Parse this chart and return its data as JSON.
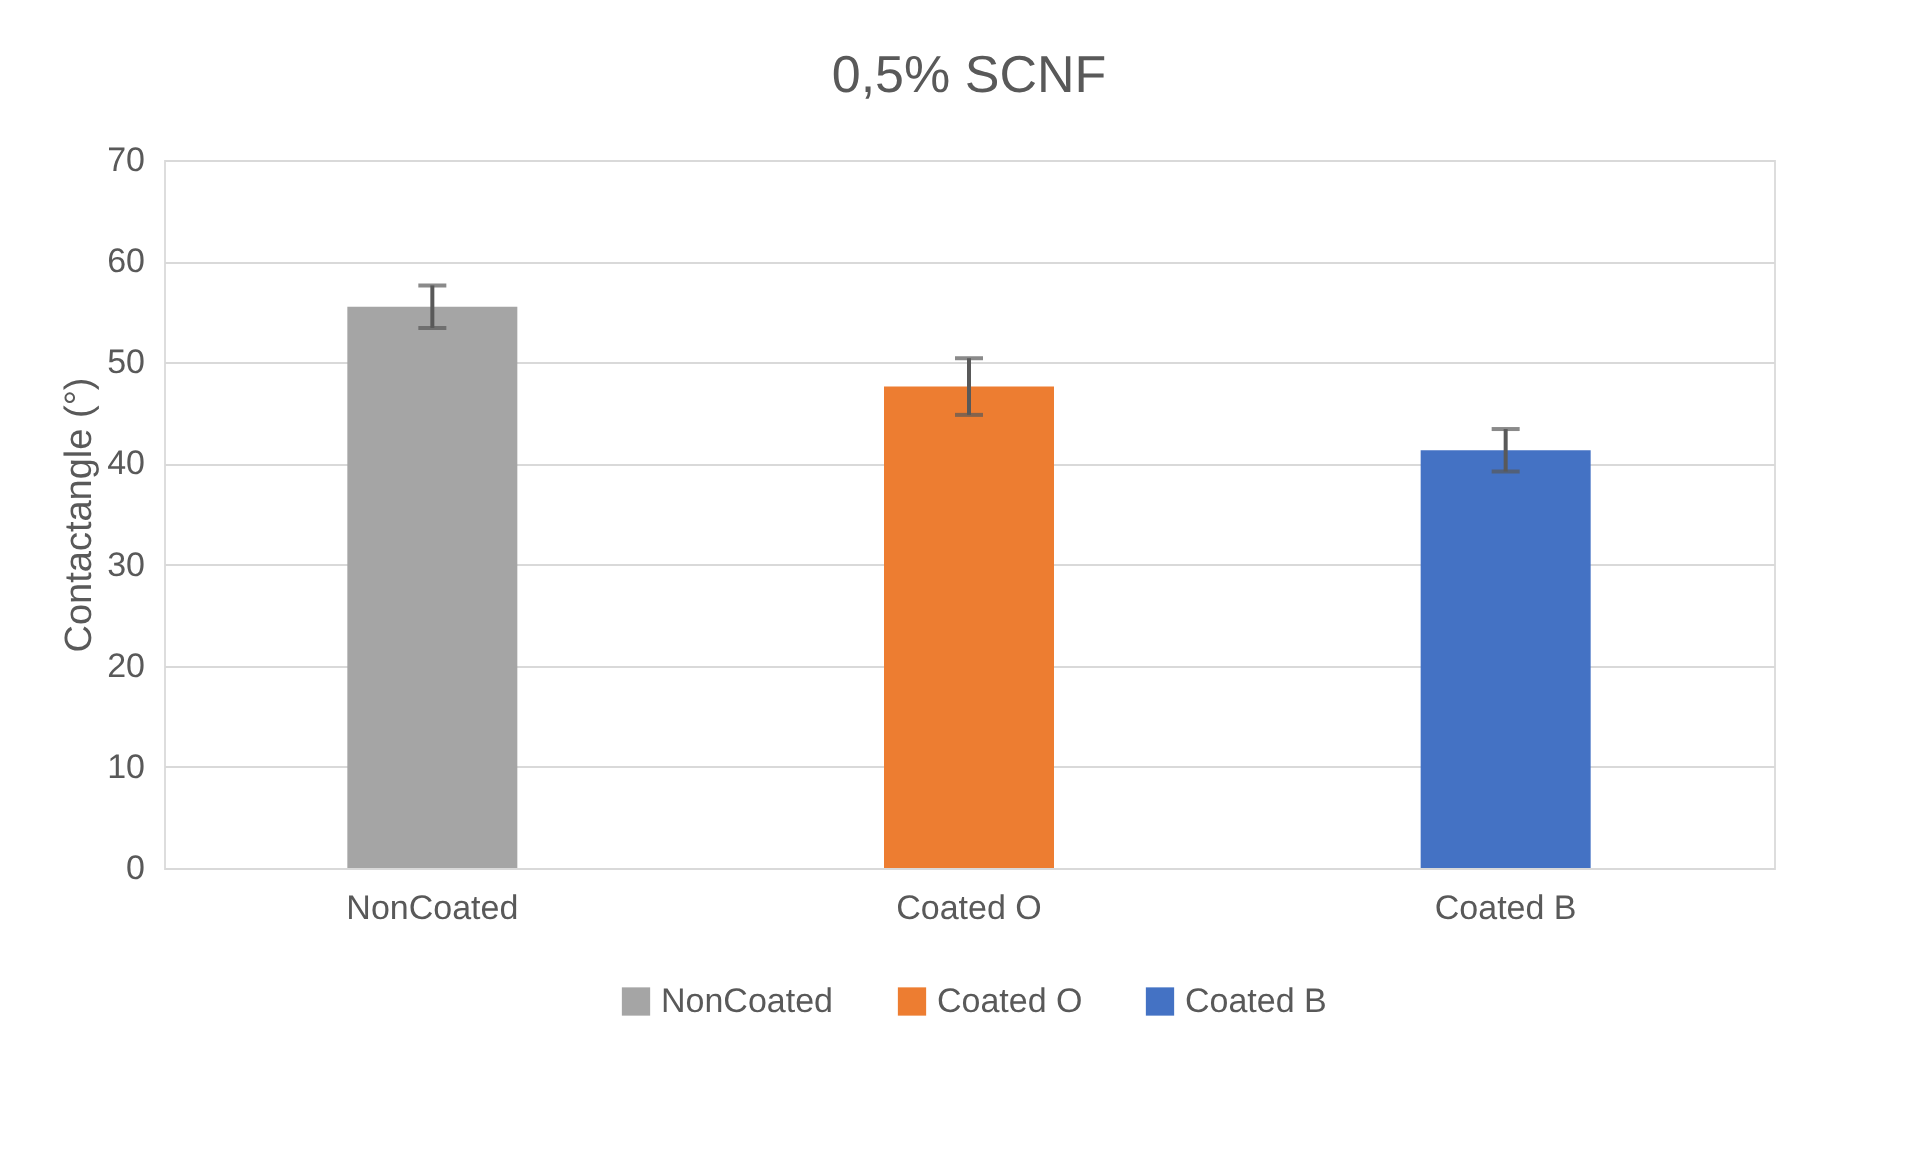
{
  "chart_data": {
    "type": "bar",
    "title": "0,5% SCNF",
    "ylabel": "Contactangle (°)",
    "categories": [
      "NonCoated",
      "Coated O",
      "Coated B"
    ],
    "series": [
      {
        "name": "NonCoated",
        "color": "#a5a5a5",
        "values": [
          55.5,
          null,
          null
        ],
        "errors": [
          2.1,
          null,
          null
        ]
      },
      {
        "name": "Coated O",
        "color": "#ed7d31",
        "values": [
          null,
          47.6,
          null
        ],
        "errors": [
          null,
          2.8,
          null
        ]
      },
      {
        "name": "Coated B",
        "color": "#4472c4",
        "values": [
          null,
          null,
          41.3
        ],
        "errors": [
          null,
          null,
          2.1
        ]
      }
    ],
    "ylim": [
      0,
      70
    ],
    "yticks": [
      0,
      10,
      20,
      30,
      40,
      50,
      60,
      70
    ],
    "grid": "y",
    "legend": "bottom"
  }
}
